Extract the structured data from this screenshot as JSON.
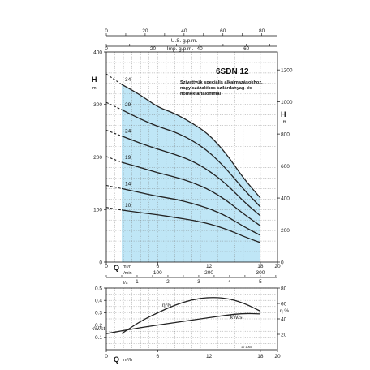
{
  "model": "6SDN 12",
  "note_lines": [
    "Szivattyúk speciális alkalmazásokhoz,",
    "nagy százalékos szilárdanyag- és",
    "homoktartalommal"
  ],
  "colors": {
    "fill": "#bfe6f6",
    "curve": "#222222",
    "grid": "#7a7a7a"
  },
  "head_chart": {
    "top_axes": {
      "usgpm": {
        "label": "U.S. g.p.m.",
        "ticks": [
          0,
          20,
          40,
          60,
          80
        ]
      },
      "impgpm": {
        "label": "Imp. g.p.m.",
        "ticks": [
          0,
          20,
          40,
          60
        ]
      }
    },
    "left_axis": {
      "big": "H",
      "unit": "m",
      "ticks": [
        0,
        100,
        200,
        300,
        400
      ]
    },
    "right_axis": {
      "big": "H",
      "unit": "ft",
      "ticks": [
        0,
        200,
        400,
        600,
        800,
        1000,
        1200
      ]
    },
    "bottom_axes": {
      "q_label": "Q",
      "m3h": {
        "unit": "m³/h",
        "ticks": [
          0,
          6,
          12,
          18,
          20
        ]
      },
      "lmin": {
        "unit": "l/min",
        "ticks": [
          100,
          200,
          300
        ]
      },
      "ls": {
        "unit": "l/s",
        "ticks": [
          1,
          2,
          3,
          4,
          5
        ]
      }
    }
  },
  "eff_chart": {
    "left_axis": {
      "label": "kW/st",
      "ticks": [
        0.1,
        0.2,
        0.3,
        0.4,
        0.5
      ]
    },
    "right_axis": {
      "label": "η %",
      "ticks": [
        20,
        40,
        60,
        80
      ]
    },
    "bottom_axis": {
      "q_label": "Q",
      "unit": "m³/h",
      "ticks": [
        0,
        6,
        12,
        18,
        20
      ]
    },
    "labels": {
      "eta": "η %",
      "kw": "kW/st"
    },
    "code": "10 1065"
  },
  "chart_data": [
    {
      "type": "line",
      "xlabel": "Q m³/h",
      "ylabel": "H m",
      "xlim": [
        0,
        20
      ],
      "ylim": [
        0,
        400
      ],
      "grid": true,
      "operating_range_m3h": [
        1.8,
        18
      ],
      "series": [
        {
          "name": "34",
          "x": [
            0,
            1.8,
            4,
            6,
            8,
            10,
            12,
            14,
            16,
            18
          ],
          "y": [
            358,
            338,
            318,
            295,
            283,
            265,
            243,
            207,
            160,
            122
          ]
        },
        {
          "name": "29",
          "x": [
            0,
            1.8,
            4,
            6,
            8,
            10,
            12,
            14,
            16,
            18
          ],
          "y": [
            304,
            290,
            272,
            258,
            248,
            232,
            210,
            178,
            139,
            105
          ]
        },
        {
          "name": "24",
          "x": [
            0,
            1.8,
            4,
            6,
            8,
            10,
            12,
            14,
            16,
            18
          ],
          "y": [
            251,
            240,
            226,
            215,
            205,
            193,
            174,
            149,
            116,
            88
          ]
        },
        {
          "name": "19",
          "x": [
            0,
            1.8,
            4,
            6,
            8,
            10,
            12,
            14,
            16,
            18
          ],
          "y": [
            201,
            190,
            180,
            170,
            162,
            152,
            138,
            118,
            92,
            69
          ]
        },
        {
          "name": "14",
          "x": [
            0,
            1.8,
            4,
            6,
            8,
            10,
            12,
            14,
            16,
            18
          ],
          "y": [
            146,
            140,
            132,
            125,
            120,
            112,
            102,
            88,
            68,
            51
          ]
        },
        {
          "name": "10",
          "x": [
            0,
            1.8,
            4,
            6,
            8,
            10,
            12,
            14,
            16,
            18
          ],
          "y": [
            104,
            99,
            94,
            90,
            85,
            80,
            73,
            63,
            49,
            37
          ]
        }
      ]
    },
    {
      "type": "line",
      "xlabel": "Q m³/h",
      "ylabel": "kW/st",
      "y2label": "η %",
      "xlim": [
        0,
        20
      ],
      "ylim": [
        0,
        0.5
      ],
      "y2lim": [
        0,
        80
      ],
      "grid": true,
      "series": [
        {
          "name": "η %",
          "axis": "right",
          "x": [
            1.8,
            4,
            6,
            8,
            10,
            12,
            14,
            16,
            18
          ],
          "y": [
            21,
            37,
            48,
            58,
            65,
            68,
            67,
            61,
            50
          ]
        },
        {
          "name": "kW/st",
          "axis": "left",
          "x": [
            0,
            4,
            8,
            12,
            14,
            16,
            18
          ],
          "y": [
            0.13,
            0.18,
            0.22,
            0.26,
            0.28,
            0.295,
            0.29
          ]
        }
      ]
    }
  ]
}
